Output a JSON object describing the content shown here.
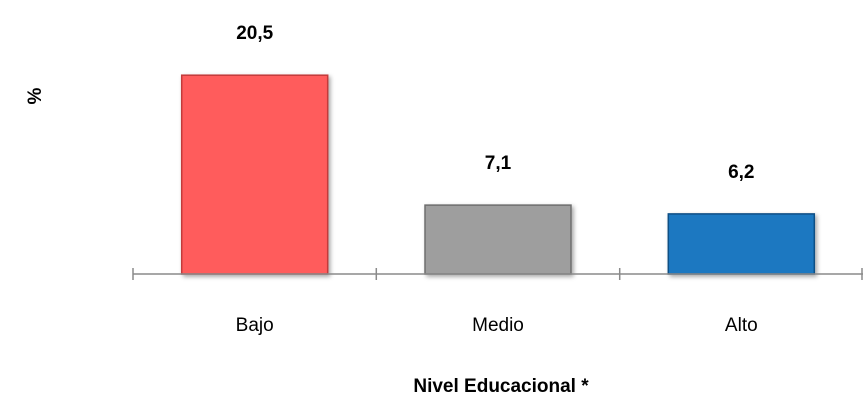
{
  "chart_data": {
    "type": "bar",
    "categories": [
      "Bajo",
      "Medio",
      "Alto"
    ],
    "values": [
      20.5,
      7.1,
      6.2
    ],
    "value_labels": [
      "20,5",
      "7,1",
      "6,2"
    ],
    "xlabel": "Nivel Educacional *",
    "ylabel": "%",
    "ylim": [
      0,
      22
    ],
    "grid": false,
    "legend": "none",
    "colors": [
      "#ff5b5b",
      "#9e9e9e",
      "#1f78c1"
    ],
    "bar_outline_colors": [
      "#c23a3a",
      "#6e6e6e",
      "#0f4f85"
    ],
    "axis_color": "#8a8a8a"
  }
}
